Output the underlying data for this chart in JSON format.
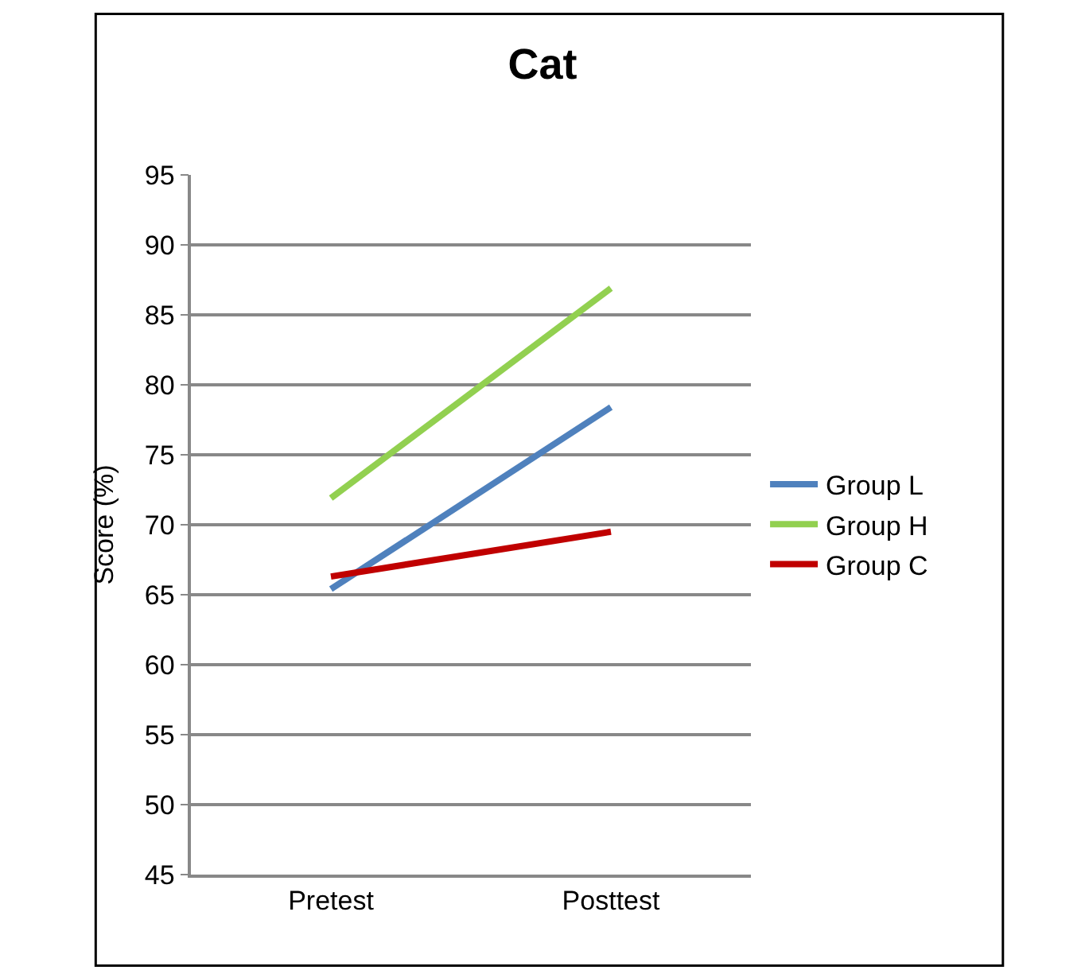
{
  "chart_data": {
    "type": "line",
    "title": "Cat",
    "ylabel": "Score (%)",
    "categories": [
      "Pretest",
      "Posttest"
    ],
    "series": [
      {
        "name": "Group L",
        "color": "#4f81bd",
        "values": [
          65.4,
          78.4
        ]
      },
      {
        "name": "Group H",
        "color": "#92d050",
        "values": [
          71.9,
          86.9
        ]
      },
      {
        "name": "Group C",
        "color": "#c00000",
        "values": [
          66.3,
          69.5
        ]
      }
    ],
    "ylim": [
      45,
      95
    ],
    "yticks": [
      45,
      50,
      55,
      60,
      65,
      70,
      75,
      80,
      85,
      90,
      95
    ],
    "grid": "y",
    "legend": "right",
    "marker": "none",
    "line_style": "solid"
  }
}
